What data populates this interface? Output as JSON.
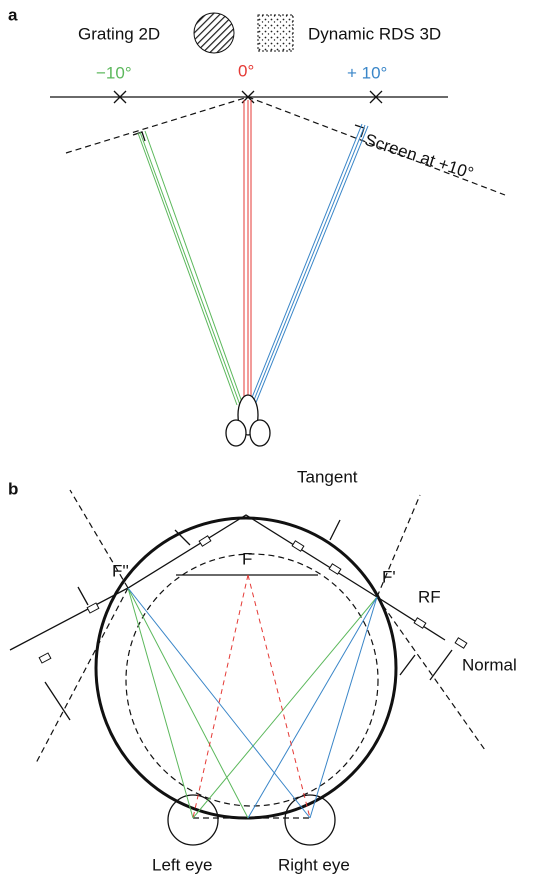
{
  "panel_a": {
    "label": "a",
    "legend": [
      "Grating 2D",
      "Dynamic RDS 3D"
    ],
    "angles": [
      "−10°",
      "0°",
      "+ 10°"
    ],
    "screen_label": "Screen at +10°"
  },
  "panel_b": {
    "label": "b",
    "tangent": "Tangent",
    "focus_left": "F''",
    "focus": "F",
    "focus_right": "F'",
    "rf": "RF",
    "normal": "Normal",
    "eyes": [
      "Left eye",
      "Right eye"
    ]
  }
}
